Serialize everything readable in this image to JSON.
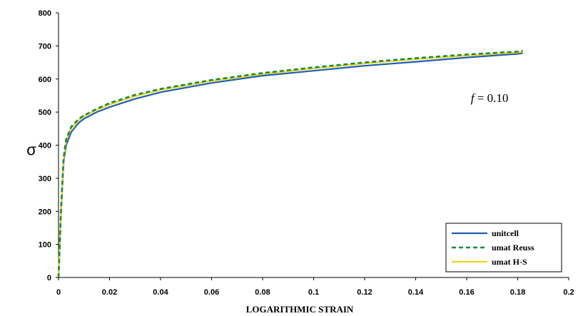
{
  "chart_data": {
    "type": "line",
    "title": "",
    "xlabel": "LOGARITHMIC STRAIN",
    "ylabel": "σ",
    "xlim": [
      0,
      0.2
    ],
    "ylim": [
      0,
      800
    ],
    "xticks": [
      0,
      0.02,
      0.04,
      0.06,
      0.08,
      0.1,
      0.12,
      0.14,
      0.16,
      0.18,
      0.2
    ],
    "xtick_labels": [
      "0",
      "0.02",
      "0.04",
      "0.06",
      "0.08",
      "0.1",
      "0.12",
      "0.14",
      "0.16",
      "0.18",
      "0.2"
    ],
    "yticks": [
      0,
      100,
      200,
      300,
      400,
      500,
      600,
      700,
      800
    ],
    "ytick_labels": [
      "0",
      "100",
      "200",
      "300",
      "400",
      "500",
      "600",
      "700",
      "800"
    ],
    "grid": false,
    "legend_position": "bottom-right",
    "annotation": {
      "italic_part": "f",
      "rest": " = 0.10",
      "x": 0.17,
      "y": 530
    },
    "series": [
      {
        "name": "unitcell",
        "color": "#1f5fb4",
        "style": "solid",
        "x": [
          0,
          0.001,
          0.002,
          0.003,
          0.005,
          0.008,
          0.01,
          0.015,
          0.02,
          0.03,
          0.04,
          0.06,
          0.08,
          0.1,
          0.12,
          0.14,
          0.16,
          0.18,
          0.182
        ],
        "y": [
          0,
          200,
          350,
          400,
          440,
          468,
          480,
          500,
          515,
          540,
          560,
          588,
          610,
          625,
          640,
          652,
          665,
          676,
          678
        ]
      },
      {
        "name": "umat Reuss",
        "color": "#1a8a45",
        "style": "dashed",
        "x": [
          0,
          0.001,
          0.002,
          0.003,
          0.005,
          0.008,
          0.01,
          0.015,
          0.02,
          0.03,
          0.04,
          0.06,
          0.08,
          0.1,
          0.12,
          0.14,
          0.16,
          0.18,
          0.182
        ],
        "y": [
          0,
          210,
          362,
          418,
          456,
          480,
          490,
          510,
          527,
          552,
          570,
          597,
          618,
          635,
          650,
          663,
          674,
          683,
          685
        ]
      },
      {
        "name": "umat H-S",
        "color": "#f2d21b",
        "style": "solid",
        "x": [
          0,
          0.001,
          0.002,
          0.003,
          0.005,
          0.008,
          0.01,
          0.015,
          0.02,
          0.03,
          0.04,
          0.06,
          0.08,
          0.1,
          0.12,
          0.14,
          0.16,
          0.18,
          0.182
        ],
        "y": [
          0,
          206,
          357,
          413,
          451,
          476,
          487,
          507,
          523,
          548,
          567,
          594,
          615,
          632,
          647,
          660,
          671,
          680,
          682
        ]
      }
    ]
  }
}
